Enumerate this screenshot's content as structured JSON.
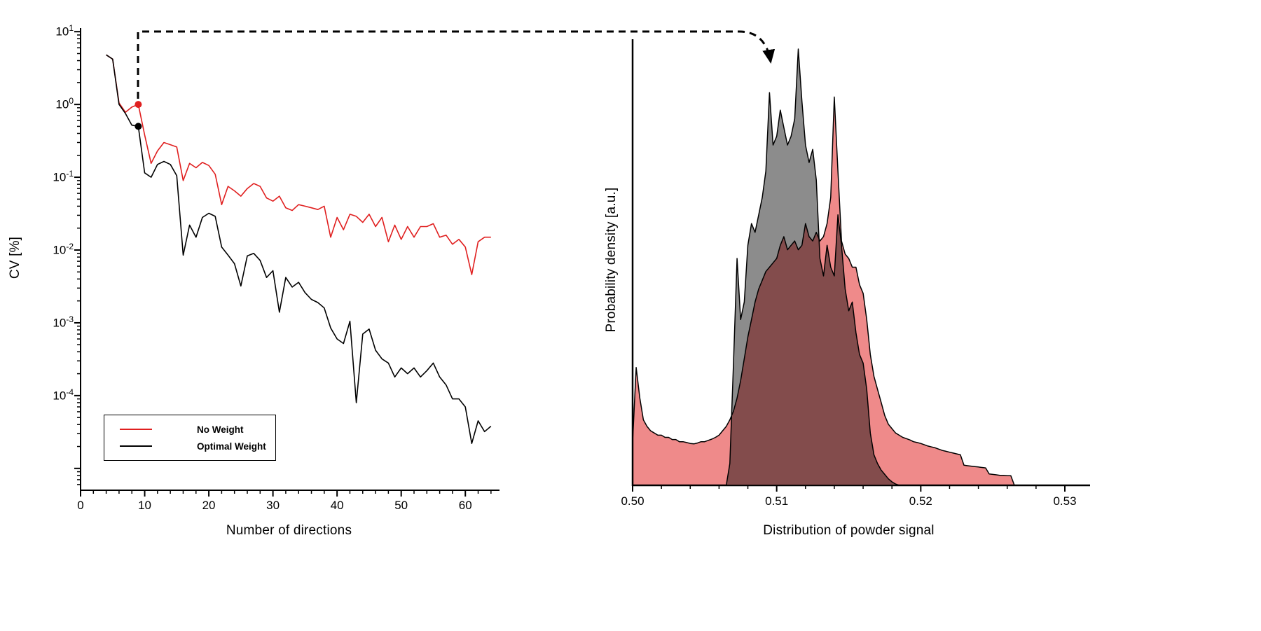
{
  "chart_data": [
    {
      "type": "line",
      "title": "",
      "xlabel": "Number of directions",
      "ylabel": "CV [%]",
      "x_ticks": [
        0,
        10,
        20,
        30,
        40,
        50,
        60
      ],
      "y_axis_scale": "log",
      "y_tick_exponents": [
        1,
        0,
        -1,
        -2,
        -3,
        -4
      ],
      "xlim": [
        0,
        65
      ],
      "ylim_log10": [
        -5.3,
        1.05
      ],
      "grid": false,
      "legend_position": "lower-left",
      "series": [
        {
          "name": "No Weight",
          "color": "#e01f1f",
          "x": [
            4,
            5,
            6,
            7,
            8,
            9,
            10,
            11,
            12,
            13,
            14,
            15,
            16,
            17,
            18,
            19,
            20,
            21,
            22,
            23,
            24,
            25,
            26,
            27,
            28,
            29,
            30,
            31,
            32,
            33,
            34,
            35,
            36,
            37,
            38,
            39,
            40,
            41,
            42,
            43,
            44,
            45,
            46,
            47,
            48,
            49,
            50,
            51,
            52,
            53,
            54,
            55,
            56,
            57,
            58,
            59,
            60,
            61,
            62,
            63,
            64
          ],
          "y": [
            4.8,
            4.2,
            1.05,
            0.78,
            0.92,
            1.0,
            0.38,
            0.155,
            0.23,
            0.3,
            0.28,
            0.26,
            0.09,
            0.155,
            0.135,
            0.16,
            0.145,
            0.11,
            0.042,
            0.075,
            0.065,
            0.055,
            0.07,
            0.082,
            0.075,
            0.052,
            0.047,
            0.055,
            0.038,
            0.035,
            0.042,
            0.04,
            0.038,
            0.036,
            0.04,
            0.015,
            0.028,
            0.019,
            0.031,
            0.029,
            0.024,
            0.031,
            0.021,
            0.028,
            0.013,
            0.022,
            0.014,
            0.021,
            0.015,
            0.021,
            0.021,
            0.023,
            0.015,
            0.016,
            0.012,
            0.014,
            0.011,
            0.0046,
            0.013,
            0.015,
            0.015
          ]
        },
        {
          "name": "Optimal Weight",
          "color": "#000000",
          "x": [
            4,
            5,
            6,
            7,
            8,
            9,
            10,
            11,
            12,
            13,
            14,
            15,
            16,
            17,
            18,
            19,
            20,
            21,
            22,
            23,
            24,
            25,
            26,
            27,
            28,
            29,
            30,
            31,
            32,
            33,
            34,
            35,
            36,
            37,
            38,
            39,
            40,
            41,
            42,
            43,
            44,
            45,
            46,
            47,
            48,
            49,
            50,
            51,
            52,
            53,
            54,
            55,
            56,
            57,
            58,
            59,
            60,
            61,
            62,
            63,
            64
          ],
          "y": [
            4.8,
            4.2,
            1.0,
            0.75,
            0.52,
            0.5,
            0.115,
            0.1,
            0.15,
            0.165,
            0.15,
            0.105,
            0.0085,
            0.022,
            0.015,
            0.028,
            0.032,
            0.029,
            0.011,
            0.0085,
            0.0065,
            0.0032,
            0.0083,
            0.009,
            0.0072,
            0.0042,
            0.0052,
            0.0014,
            0.0042,
            0.0031,
            0.0036,
            0.0026,
            0.0021,
            0.0019,
            0.0016,
            0.00085,
            0.0006,
            0.00052,
            0.00105,
            8e-05,
            0.0007,
            0.00082,
            0.00042,
            0.00032,
            0.00028,
            0.00018,
            0.00024,
            0.0002,
            0.00024,
            0.00018,
            0.00022,
            0.00028,
            0.00018,
            0.00014,
            9e-05,
            9e-05,
            7e-05,
            2.2e-05,
            4.5e-05,
            3.2e-05,
            3.8e-05
          ]
        }
      ],
      "marked_points": [
        {
          "x": 9,
          "y": 1.0,
          "color": "#e01f1f"
        },
        {
          "x": 9,
          "y": 0.5,
          "color": "#000000"
        }
      ]
    },
    {
      "type": "area",
      "title": "",
      "xlabel": "Distribution of powder signal",
      "ylabel": "Probability density [a.u.]",
      "x_ticks": [
        "0.50",
        "0.51",
        "0.52",
        "0.53"
      ],
      "x_minor_step": 0.002,
      "xlim": [
        0.5,
        0.532
      ],
      "ylim": [
        0,
        1.05
      ],
      "y_ticks": [],
      "grid": false,
      "x_start": 0.5,
      "x_step": 0.00025,
      "series": [
        {
          "name": "Optimal Weight distribution",
          "fill": "#8c8c8c",
          "outline": "#000000",
          "y": [
            0,
            0,
            0,
            0,
            0,
            0,
            0,
            0,
            0,
            0,
            0,
            0,
            0,
            0,
            0,
            0,
            0,
            0,
            0,
            0,
            0,
            0,
            0,
            0,
            0,
            0,
            0,
            0.05,
            0.28,
            0.52,
            0.38,
            0.42,
            0.55,
            0.6,
            0.58,
            0.62,
            0.66,
            0.72,
            0.9,
            0.78,
            0.8,
            0.86,
            0.82,
            0.78,
            0.8,
            0.84,
            1.0,
            0.88,
            0.78,
            0.74,
            0.77,
            0.7,
            0.52,
            0.48,
            0.55,
            0.5,
            0.48,
            0.62,
            0.55,
            0.45,
            0.4,
            0.42,
            0.35,
            0.3,
            0.28,
            0.22,
            0.12,
            0.07,
            0.05,
            0.035,
            0.025,
            0.015,
            0.008,
            0.003,
            0,
            0,
            0,
            0,
            0,
            0,
            0,
            0,
            0,
            0,
            0,
            0,
            0,
            0,
            0,
            0,
            0,
            0,
            0,
            0,
            0,
            0,
            0,
            0,
            0,
            0,
            0,
            0,
            0,
            0,
            0,
            0,
            0,
            0
          ]
        },
        {
          "name": "No Weight distribution",
          "fill": "#ef8a8a",
          "outline": "#000000",
          "blend": "multiply",
          "y": [
            0.1,
            0.27,
            0.2,
            0.15,
            0.135,
            0.125,
            0.12,
            0.115,
            0.115,
            0.11,
            0.11,
            0.105,
            0.105,
            0.1,
            0.1,
            0.098,
            0.096,
            0.095,
            0.097,
            0.1,
            0.1,
            0.103,
            0.106,
            0.11,
            0.115,
            0.125,
            0.135,
            0.15,
            0.17,
            0.2,
            0.24,
            0.29,
            0.34,
            0.38,
            0.42,
            0.45,
            0.47,
            0.49,
            0.5,
            0.51,
            0.52,
            0.55,
            0.57,
            0.54,
            0.55,
            0.56,
            0.54,
            0.55,
            0.6,
            0.57,
            0.56,
            0.58,
            0.56,
            0.57,
            0.6,
            0.66,
            0.89,
            0.72,
            0.56,
            0.53,
            0.52,
            0.5,
            0.5,
            0.46,
            0.44,
            0.38,
            0.3,
            0.25,
            0.22,
            0.19,
            0.16,
            0.14,
            0.13,
            0.12,
            0.115,
            0.11,
            0.107,
            0.104,
            0.1,
            0.098,
            0.096,
            0.093,
            0.09,
            0.088,
            0.086,
            0.083,
            0.08,
            0.078,
            0.076,
            0.074,
            0.072,
            0.07,
            0.046,
            0.045,
            0.044,
            0.043,
            0.042,
            0.041,
            0.04,
            0.026,
            0.025,
            0.024,
            0.023,
            0.023,
            0.022,
            0.022,
            0,
            0
          ]
        }
      ]
    }
  ],
  "annotation_arrow": {
    "style": "dashed",
    "description": "connector from the marked points at 9 directions to the distribution plot"
  }
}
